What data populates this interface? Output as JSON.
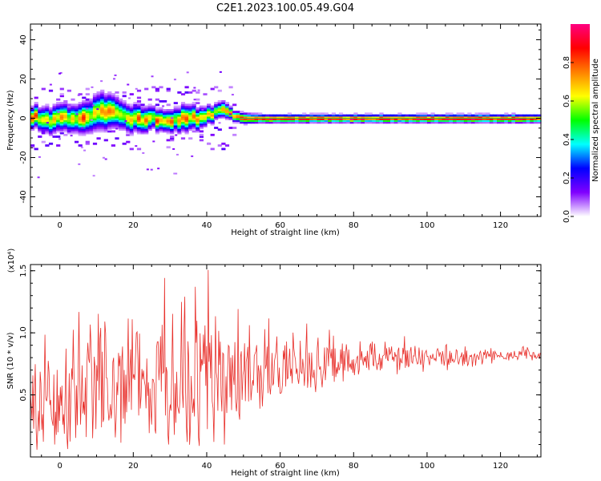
{
  "title": "C2E1.2023.100.05.49.G04",
  "chart_data": [
    {
      "type": "heatmap",
      "xlabel": "Height of straight line (km)",
      "ylabel": "Frequency (Hz)",
      "xlim": [
        -8,
        131
      ],
      "ylim": [
        -50,
        48
      ],
      "xticks": [
        0,
        20,
        40,
        60,
        80,
        100,
        120
      ],
      "yticks": [
        -40,
        -20,
        0,
        20,
        40
      ],
      "colorbar": {
        "label": "Normalized spectral amplitude",
        "range": [
          0,
          1
        ],
        "ticks": [
          0.0,
          0.2,
          0.4,
          0.6,
          0.8
        ],
        "colormap": [
          "#ffffff",
          "#8000ff",
          "#0000ff",
          "#00ffff",
          "#00ff00",
          "#ffff00",
          "#ff8000",
          "#ff0000",
          "#ff0080"
        ]
      },
      "ridge": {
        "x": [
          -7,
          -3,
          0,
          4,
          8,
          11,
          14,
          18,
          22,
          26,
          30,
          34,
          38,
          42,
          45,
          47,
          50,
          55,
          60,
          70,
          80,
          90,
          100,
          110,
          120,
          130
        ],
        "frequency_hz": [
          1,
          -1,
          1,
          0,
          1,
          3,
          4,
          1,
          -1,
          0,
          -2,
          1,
          0,
          3,
          5,
          2,
          0,
          0,
          0,
          0,
          0,
          0,
          0,
          0,
          0,
          0
        ],
        "spread_hz": [
          4,
          5,
          5,
          5,
          6,
          7,
          6,
          5,
          5,
          4,
          4,
          5,
          4,
          3,
          3,
          2,
          2,
          1.5,
          1.5,
          1.5,
          1.5,
          1.5,
          1.5,
          1.5,
          1.5,
          1.5
        ]
      }
    },
    {
      "type": "line",
      "xlabel": "Height of straight line (km)",
      "ylabel": "SNR (10 * v/v)",
      "multiplier": "(x10⁴)",
      "xlim": [
        -8,
        131
      ],
      "ylim": [
        0,
        1.55
      ],
      "xticks": [
        0,
        20,
        40,
        60,
        80,
        100,
        120
      ],
      "yticks": [
        0.5,
        1.0,
        1.5
      ],
      "ytick_labels": [
        "0.5",
        "1.0",
        "1.5"
      ],
      "color": "#e8302b",
      "envelope": {
        "x": [
          -8,
          0,
          10,
          20,
          30,
          35,
          40,
          45,
          50,
          60,
          70,
          80,
          90,
          100,
          110,
          120,
          131
        ],
        "mean": [
          0.35,
          0.45,
          0.55,
          0.6,
          0.65,
          0.68,
          0.62,
          0.6,
          0.65,
          0.72,
          0.75,
          0.78,
          0.8,
          0.8,
          0.8,
          0.82,
          0.82
        ],
        "amplitude": [
          0.35,
          0.4,
          0.45,
          0.5,
          0.55,
          0.6,
          0.6,
          0.45,
          0.35,
          0.25,
          0.2,
          0.15,
          0.12,
          0.1,
          0.08,
          0.05,
          0.04
        ]
      }
    }
  ]
}
